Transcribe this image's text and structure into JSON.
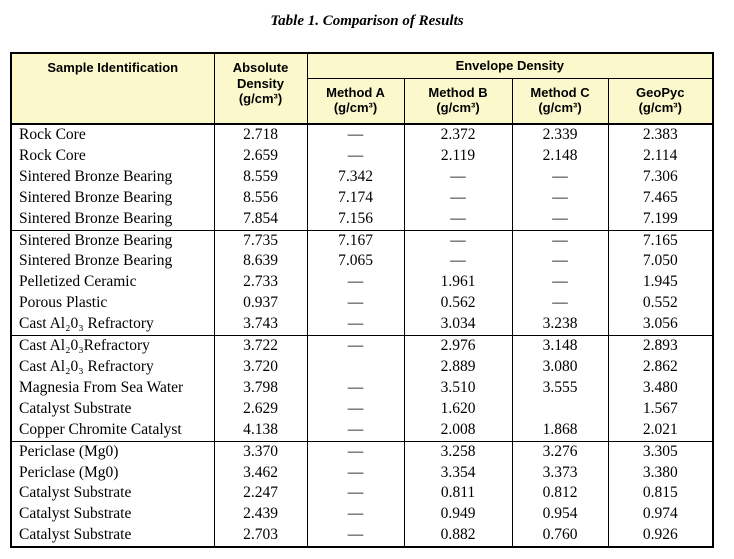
{
  "page": {
    "title": "Table 1. Comparison of Results"
  },
  "colors": {
    "header_bg": "#FBF9CC",
    "border": "#000000",
    "text": "#000000"
  },
  "table": {
    "headers": {
      "sample": "Sample Identification",
      "absolute": "Absolute Density (g/cm³)",
      "envelope": "Envelope Density",
      "methods": [
        {
          "label": "Method A",
          "unit": "(g/cm³)"
        },
        {
          "label": "Method B",
          "unit": "(g/cm³)"
        },
        {
          "label": "Method C",
          "unit": "(g/cm³)"
        },
        {
          "label": "GeoPyc",
          "unit": "(g/cm³)"
        }
      ]
    },
    "rows": [
      {
        "sample": "Rock Core",
        "absolute": "2.718",
        "method_a": "—",
        "method_b": "2.372",
        "method_c": "2.339",
        "geopyc": "2.383"
      },
      {
        "sample": "Rock Core",
        "absolute": "2.659",
        "method_a": "—",
        "method_b": "2.119",
        "method_c": "2.148",
        "geopyc": "2.114"
      },
      {
        "sample": "Sintered Bronze Bearing",
        "absolute": "8.559",
        "method_a": "7.342",
        "method_b": "—",
        "method_c": "—",
        "geopyc": "7.306"
      },
      {
        "sample": "Sintered Bronze Bearing",
        "absolute": "8.556",
        "method_a": "7.174",
        "method_b": "—",
        "method_c": "—",
        "geopyc": "7.465"
      },
      {
        "sample": "Sintered Bronze Bearing",
        "absolute": "7.854",
        "method_a": "7.156",
        "method_b": "—",
        "method_c": "—",
        "geopyc": "7.199"
      },
      {
        "sample": "Sintered Bronze Bearing",
        "absolute": "7.735",
        "method_a": "7.167",
        "method_b": "—",
        "method_c": "—",
        "geopyc": "7.165"
      },
      {
        "sample": "Sintered Bronze Bearing",
        "absolute": "8.639",
        "method_a": "7.065",
        "method_b": "—",
        "method_c": "—",
        "geopyc": "7.050"
      },
      {
        "sample": "Pelletized Ceramic",
        "absolute": "2.733",
        "method_a": "—",
        "method_b": "1.961",
        "method_c": "—",
        "geopyc": "1.945"
      },
      {
        "sample": "Porous Plastic",
        "absolute": "0.937",
        "method_a": "—",
        "method_b": "0.562",
        "method_c": "—",
        "geopyc": "0.552"
      },
      {
        "sample": "Cast Al₂0₃ Refractory",
        "absolute": "3.743",
        "method_a": "—",
        "method_b": "3.034",
        "method_c": "3.238",
        "geopyc": "3.056"
      },
      {
        "sample": "Cast Al₂0₃Refractory",
        "absolute": "3.722",
        "method_a": "—",
        "method_b": "2.976",
        "method_c": "3.148",
        "geopyc": "2.893"
      },
      {
        "sample": "Cast Al₂0₃ Refractory",
        "absolute": "3.720",
        "method_a": "",
        "method_b": "2.889",
        "method_c": "3.080",
        "geopyc": "2.862"
      },
      {
        "sample": "Magnesia From Sea Water",
        "absolute": "3.798",
        "method_a": "—",
        "method_b": "3.510",
        "method_c": "3.555",
        "geopyc": "3.480"
      },
      {
        "sample": "Catalyst Substrate",
        "absolute": "2.629",
        "method_a": "—",
        "method_b": "1.620",
        "method_c": "",
        "geopyc": "1.567"
      },
      {
        "sample": "Copper Chromite Catalyst",
        "absolute": "4.138",
        "method_a": "—",
        "method_b": "2.008",
        "method_c": "1.868",
        "geopyc": "2.021"
      },
      {
        "sample": "Periclase (Mg0)",
        "absolute": "3.370",
        "method_a": "—",
        "method_b": "3.258",
        "method_c": "3.276",
        "geopyc": "3.305"
      },
      {
        "sample": "Periclase (Mg0)",
        "absolute": "3.462",
        "method_a": "—",
        "method_b": "3.354",
        "method_c": "3.373",
        "geopyc": "3.380"
      },
      {
        "sample": "Catalyst Substrate",
        "absolute": "2.247",
        "method_a": "—",
        "method_b": "0.811",
        "method_c": "0.812",
        "geopyc": "0.815"
      },
      {
        "sample": "Catalyst Substrate",
        "absolute": "2.439",
        "method_a": "—",
        "method_b": "0.949",
        "method_c": "0.954",
        "geopyc": "0.974"
      },
      {
        "sample": "Catalyst Substrate",
        "absolute": "2.703",
        "method_a": "—",
        "method_b": "0.882",
        "method_c": "0.760",
        "geopyc": "0.926"
      }
    ]
  }
}
